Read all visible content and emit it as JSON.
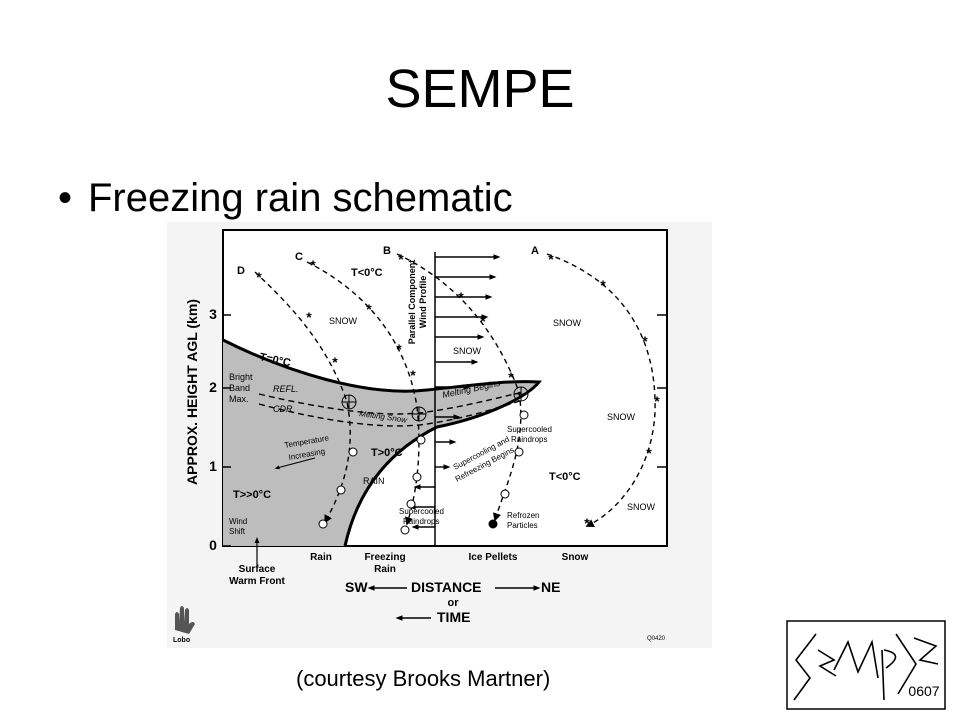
{
  "slide": {
    "title": "SEMPE",
    "bullet": "Freezing rain schematic",
    "caption": "(courtesy Brooks Martner)"
  },
  "diagram": {
    "y_axis_title": "APPROX. HEIGHT AGL (km)",
    "y_ticks": [
      "0",
      "1",
      "2",
      "3"
    ],
    "trajectory_labels": [
      "A",
      "B",
      "C",
      "D"
    ],
    "wind_profile_label_1": "Parallel Component",
    "wind_profile_label_2": "Wind Profile",
    "isotherm_label": "T=0°C",
    "cold_upper_label": "T<0°C",
    "warm_layer_label": "T>0°C",
    "hot_layer_label": "T>>0°C",
    "cold_lower_label": "T<0°C",
    "snow_label": "SNOW",
    "rain_label": "RAIN",
    "bright_band_1": "Bright",
    "bright_band_2": "Band",
    "bright_band_3": "Max.",
    "refl_label": "REFL.",
    "cdr_label": "CDR",
    "melting_snow_label": "Melting Snow",
    "melting_begins_label": "Melting Begins",
    "temperature_label_1": "Temperature",
    "temperature_label_2": "Increasing",
    "supercooled_raindrops_1": "Supercooled",
    "supercooled_raindrops_2": "Raindrops",
    "supercooling_1": "Supercooling and",
    "supercooling_2": "Refreezing Begins",
    "refrozen_1": "Refrozen",
    "refrozen_2": "Particles",
    "wind_shift_1": "Wind",
    "wind_shift_2": "Shift",
    "surface_front_1": "Surface",
    "surface_front_2": "Warm Front",
    "precip_rain": "Rain",
    "precip_freezing_1": "Freezing",
    "precip_freezing_2": "Rain",
    "precip_ice": "Ice Pellets",
    "precip_snow": "Snow",
    "dir_sw": "SW",
    "dir_ne": "NE",
    "distance_label": "DISTANCE",
    "or_label": "or",
    "time_label": "TIME",
    "lobo_label": "Lobo",
    "code_label": "Q0420"
  },
  "logo": {
    "text": "0607"
  }
}
